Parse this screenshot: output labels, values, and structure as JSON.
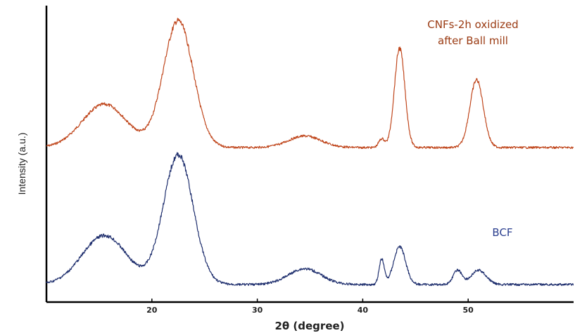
{
  "chart_data": {
    "type": "line",
    "xlabel": "2θ (degree)",
    "ylabel": "Intensity (a.u.)",
    "xlim": [
      10,
      60
    ],
    "x_ticks": [
      20,
      30,
      40,
      50
    ],
    "y_ticks_labeled": false,
    "grid": false,
    "series": [
      {
        "name": "CNFs-2h oxidized after Ball mill",
        "label_lines": [
          "CNFs-2h oxidized",
          "after Ball mill"
        ],
        "color": "#c0471d",
        "peaks": [
          {
            "x": 15.5,
            "height": 0.3,
            "width": 3.0
          },
          {
            "x": 22.5,
            "height": 0.88,
            "width": 2.0
          },
          {
            "x": 34.5,
            "height": 0.08,
            "width": 2.2
          },
          {
            "x": 41.8,
            "height": 0.06,
            "width": 0.4
          },
          {
            "x": 43.5,
            "height": 0.69,
            "width": 0.7
          },
          {
            "x": 50.8,
            "height": 0.47,
            "width": 0.9
          }
        ]
      },
      {
        "name": "BCF",
        "label_lines": [
          "BCF"
        ],
        "color": "#1f2f6e",
        "peaks": [
          {
            "x": 15.5,
            "height": 0.31,
            "width": 3.0
          },
          {
            "x": 22.5,
            "height": 0.82,
            "width": 2.0
          },
          {
            "x": 34.5,
            "height": 0.1,
            "width": 2.2
          },
          {
            "x": 41.8,
            "height": 0.16,
            "width": 0.35
          },
          {
            "x": 43.5,
            "height": 0.24,
            "width": 0.8
          },
          {
            "x": 49.0,
            "height": 0.09,
            "width": 0.6
          },
          {
            "x": 51.0,
            "height": 0.09,
            "width": 1.0
          }
        ]
      }
    ]
  }
}
